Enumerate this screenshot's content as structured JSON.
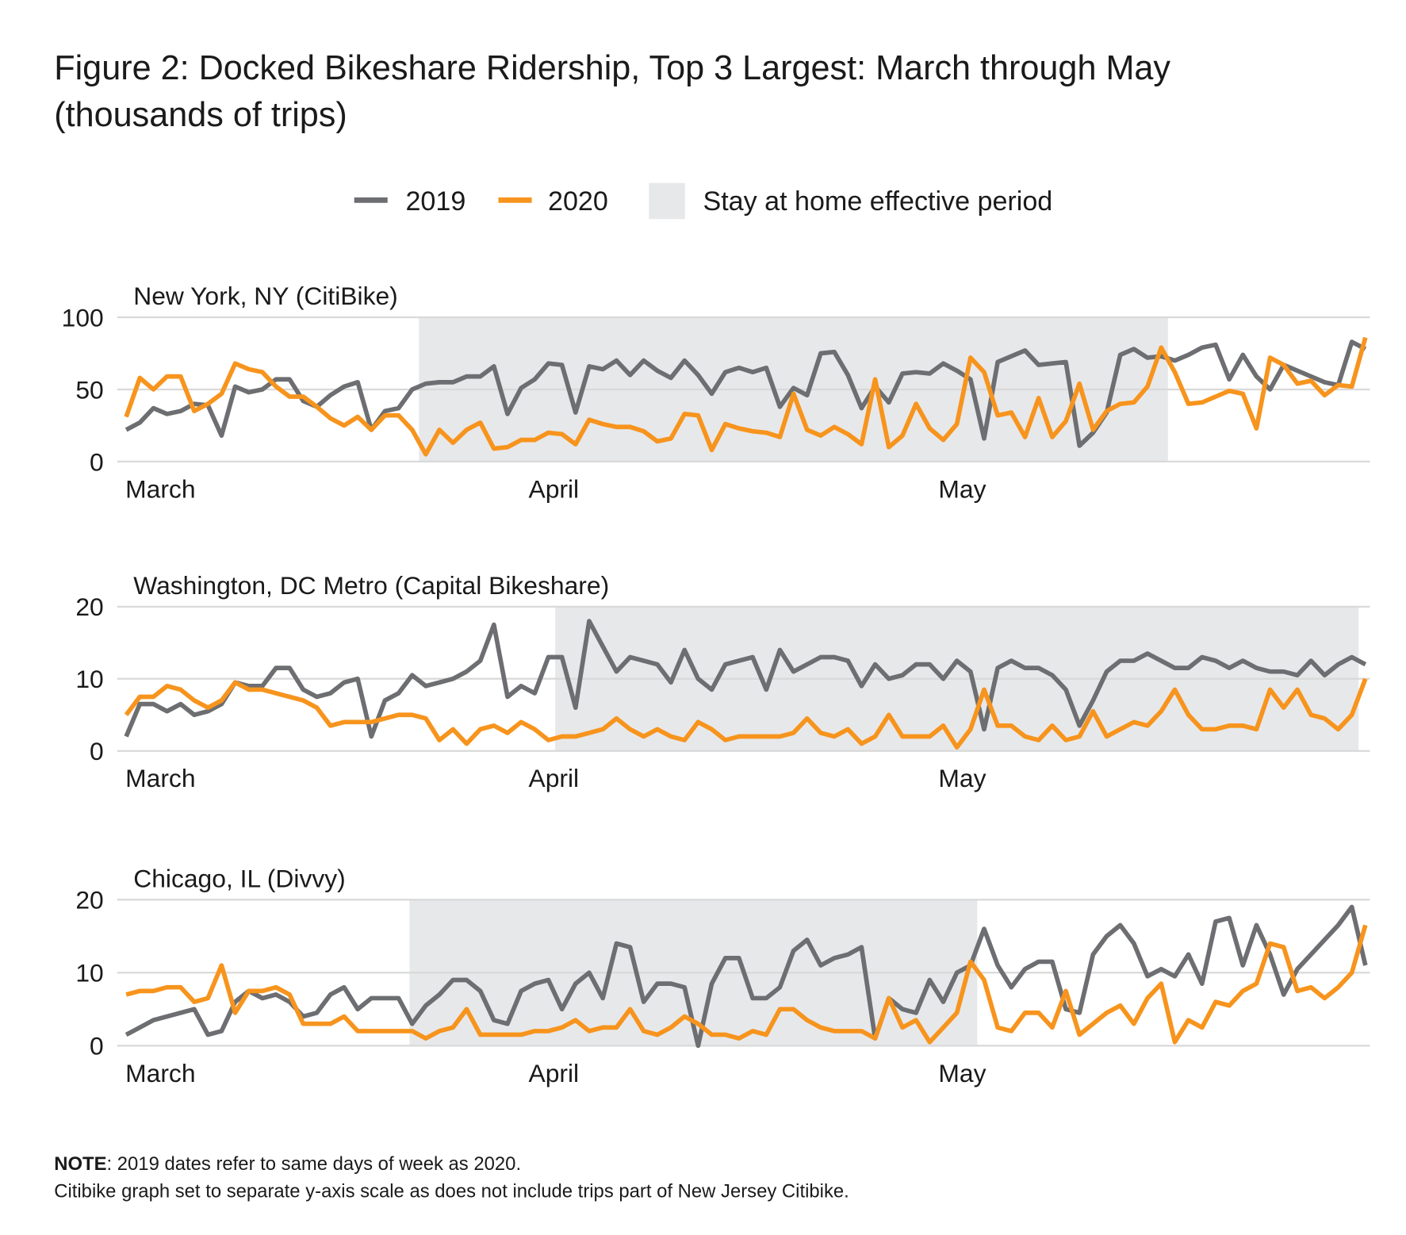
{
  "title": [
    "Figure 2: Docked Bikeshare Ridership, Top 3 Largest: March through May",
    "(thousands of trips)"
  ],
  "shade_label": "Stay at home effective period",
  "note_label": "NOTE",
  "notes": [
    ": 2019 dates refer to same days of week as 2020.",
    "Citibike graph set to separate y-axis scale as does not include trips part of New Jersey Citibike."
  ],
  "chart_data": [
    {
      "type": "line",
      "title": "New York, NY (CitiBike)",
      "ylim": [
        0,
        100
      ],
      "yticks": [
        0,
        50,
        100
      ],
      "grid": true,
      "shaded": [
        21.5,
        76.5
      ],
      "shade_color": "#e7e8ea",
      "categories": [
        "March",
        null,
        null,
        null,
        null,
        null,
        null,
        null,
        null,
        null,
        null,
        null,
        null,
        null,
        null,
        null,
        null,
        null,
        null,
        null,
        null,
        null,
        null,
        null,
        null,
        null,
        null,
        null,
        null,
        null,
        null,
        "April",
        null,
        null,
        null,
        null,
        null,
        null,
        null,
        null,
        null,
        null,
        null,
        null,
        null,
        null,
        null,
        null,
        null,
        null,
        null,
        null,
        null,
        null,
        null,
        null,
        null,
        null,
        null,
        null,
        null,
        "May",
        null,
        null,
        null,
        null,
        null,
        null,
        null,
        null,
        null,
        null,
        null,
        null,
        null,
        null,
        null,
        null,
        null,
        null,
        null,
        null,
        null,
        null,
        null,
        null,
        null,
        null,
        null,
        null,
        null,
        null
      ],
      "series": [
        {
          "name": "2019",
          "color": "#6d6e71",
          "values": [
            22,
            27,
            37,
            33,
            35,
            40,
            39,
            18,
            52,
            48,
            50,
            57,
            57,
            42,
            38,
            46,
            52,
            55,
            22,
            35,
            37,
            50,
            54,
            55,
            55,
            59,
            59,
            66,
            33,
            51,
            57,
            68,
            67,
            34,
            66,
            64,
            70,
            60,
            70,
            63,
            58,
            70,
            60,
            47,
            62,
            65,
            62,
            65,
            38,
            51,
            46,
            75,
            76,
            60,
            37,
            52,
            41,
            61,
            62,
            61,
            68,
            63,
            57,
            16,
            69,
            73,
            77,
            67,
            68,
            69,
            11,
            20,
            34,
            74,
            78,
            72,
            73,
            70,
            74,
            79,
            81,
            57,
            74,
            59,
            50,
            67,
            63,
            59,
            55,
            53,
            83,
            78
          ]
        },
        {
          "name": "2020",
          "color": "#f7941d",
          "values": [
            31,
            58,
            50,
            59,
            59,
            35,
            40,
            47,
            68,
            64,
            62,
            52,
            45,
            45,
            38,
            30,
            25,
            31,
            22,
            32,
            32,
            22,
            5,
            22,
            13,
            22,
            27,
            9,
            10,
            15,
            15,
            20,
            19,
            12,
            29,
            26,
            24,
            24,
            21,
            14,
            16,
            33,
            32,
            8,
            26,
            23,
            21,
            20,
            17,
            47,
            22,
            18,
            24,
            19,
            12,
            57,
            10,
            18,
            40,
            23,
            15,
            26,
            72,
            62,
            32,
            34,
            17,
            44,
            17,
            28,
            54,
            22,
            35,
            40,
            41,
            52,
            79,
            62,
            40,
            41,
            45,
            49,
            47,
            23,
            72,
            67,
            54,
            56,
            46,
            53,
            52,
            86
          ]
        }
      ]
    },
    {
      "type": "line",
      "title": "Washington, DC Metro (Capital Bikeshare)",
      "ylim": [
        0,
        20
      ],
      "yticks": [
        0,
        10,
        20
      ],
      "grid": true,
      "shaded": [
        31.5,
        90.5
      ],
      "shade_color": "#e7e8ea",
      "categories": [
        "March",
        null,
        null,
        null,
        null,
        null,
        null,
        null,
        null,
        null,
        null,
        null,
        null,
        null,
        null,
        null,
        null,
        null,
        null,
        null,
        null,
        null,
        null,
        null,
        null,
        null,
        null,
        null,
        null,
        null,
        null,
        "April",
        null,
        null,
        null,
        null,
        null,
        null,
        null,
        null,
        null,
        null,
        null,
        null,
        null,
        null,
        null,
        null,
        null,
        null,
        null,
        null,
        null,
        null,
        null,
        null,
        null,
        null,
        null,
        null,
        null,
        "May",
        null,
        null,
        null,
        null,
        null,
        null,
        null,
        null,
        null,
        null,
        null,
        null,
        null,
        null,
        null,
        null,
        null,
        null,
        null,
        null,
        null,
        null,
        null,
        null,
        null,
        null,
        null,
        null,
        null,
        null
      ],
      "series": [
        {
          "name": "2019",
          "color": "#6d6e71",
          "values": [
            2,
            6.5,
            6.5,
            5.5,
            6.5,
            5,
            5.5,
            6.5,
            9.5,
            9,
            9,
            11.5,
            11.5,
            8.5,
            7.5,
            8,
            9.5,
            10,
            2,
            7,
            8,
            10.5,
            9,
            9.5,
            10,
            11,
            12.5,
            17.5,
            7.5,
            9,
            8,
            13,
            13,
            6,
            18,
            14.5,
            11,
            13,
            12.5,
            12,
            9.5,
            14,
            10,
            8.5,
            12,
            12.5,
            13,
            8.5,
            14,
            11,
            12,
            13,
            13,
            12.5,
            9,
            12,
            10,
            10.5,
            12,
            12,
            10,
            12.5,
            11,
            3,
            11.5,
            12.5,
            11.5,
            11.5,
            10.5,
            8.5,
            3.5,
            7,
            11,
            12.5,
            12.5,
            13.5,
            12.5,
            11.5,
            11.5,
            13,
            12.5,
            11.5,
            12.5,
            11.5,
            11,
            11,
            10.5,
            12.5,
            10.5,
            12,
            13,
            12
          ]
        },
        {
          "name": "2020",
          "color": "#f7941d",
          "values": [
            5,
            7.5,
            7.5,
            9,
            8.5,
            7,
            6,
            7,
            9.5,
            8.5,
            8.5,
            8,
            7.5,
            7,
            6,
            3.5,
            4,
            4,
            4,
            4.5,
            5,
            5,
            4.5,
            1.5,
            3,
            1,
            3,
            3.5,
            2.5,
            4,
            3,
            1.5,
            2,
            2,
            2.5,
            3,
            4.5,
            3,
            2,
            3,
            2,
            1.5,
            4,
            3,
            1.5,
            2,
            2,
            2,
            2,
            2.5,
            4.5,
            2.5,
            2,
            3,
            1,
            2,
            5,
            2,
            2,
            2,
            3.5,
            0.5,
            3,
            8.5,
            3.5,
            3.5,
            2,
            1.5,
            3.5,
            1.5,
            2,
            5.5,
            2,
            3,
            4,
            3.5,
            5.5,
            8.5,
            5,
            3,
            3,
            3.5,
            3.5,
            3,
            8.5,
            6,
            8.5,
            5,
            4.5,
            3,
            5,
            10
          ]
        }
      ]
    },
    {
      "type": "line",
      "title": "Chicago, IL (Divvy)",
      "ylim": [
        0,
        20
      ],
      "yticks": [
        0,
        10,
        20
      ],
      "grid": true,
      "shaded": [
        20.8,
        62.5
      ],
      "shade_color": "#e7e8ea",
      "categories": [
        "March",
        null,
        null,
        null,
        null,
        null,
        null,
        null,
        null,
        null,
        null,
        null,
        null,
        null,
        null,
        null,
        null,
        null,
        null,
        null,
        null,
        null,
        null,
        null,
        null,
        null,
        null,
        null,
        null,
        null,
        null,
        "April",
        null,
        null,
        null,
        null,
        null,
        null,
        null,
        null,
        null,
        null,
        null,
        null,
        null,
        null,
        null,
        null,
        null,
        null,
        null,
        null,
        null,
        null,
        null,
        null,
        null,
        null,
        null,
        null,
        null,
        "May",
        null,
        null,
        null,
        null,
        null,
        null,
        null,
        null,
        null,
        null,
        null,
        null,
        null,
        null,
        null,
        null,
        null,
        null,
        null,
        null,
        null,
        null,
        null,
        null,
        null,
        null,
        null,
        null,
        null,
        null
      ],
      "series": [
        {
          "name": "2019",
          "color": "#6d6e71",
          "values": [
            1.5,
            2.5,
            3.5,
            4,
            4.5,
            5,
            1.5,
            2,
            6,
            7.5,
            6.5,
            7,
            6,
            4,
            4.5,
            7,
            8,
            5,
            6.5,
            6.5,
            6.5,
            3,
            5.5,
            7,
            9,
            9,
            7.5,
            3.5,
            3,
            7.5,
            8.5,
            9,
            5,
            8.5,
            10,
            6.5,
            14,
            13.5,
            6,
            8.5,
            8.5,
            8,
            0,
            8.5,
            12,
            12,
            6.5,
            6.5,
            8,
            13,
            14.5,
            11,
            12,
            12.5,
            13.5,
            1,
            6.5,
            5,
            4.5,
            9,
            6,
            10,
            11,
            16,
            11,
            8,
            10.5,
            11.5,
            11.5,
            5,
            4.5,
            12.5,
            15,
            16.5,
            14,
            9.5,
            10.5,
            9.5,
            12.5,
            8.5,
            17,
            17.5,
            11,
            16.5,
            12.5,
            7,
            10.5,
            12.5,
            14.5,
            16.5,
            19,
            11
          ]
        },
        {
          "name": "2020",
          "color": "#f7941d",
          "values": [
            7,
            7.5,
            7.5,
            8,
            8,
            6,
            6.5,
            11,
            4.5,
            7.5,
            7.5,
            8,
            7,
            3,
            3,
            3,
            4,
            2,
            2,
            2,
            2,
            2,
            1,
            2,
            2.5,
            5,
            1.5,
            1.5,
            1.5,
            1.5,
            2,
            2,
            2.5,
            3.5,
            2,
            2.5,
            2.5,
            5,
            2,
            1.5,
            2.5,
            4,
            3,
            1.5,
            1.5,
            1,
            2,
            1.5,
            5,
            5,
            3.5,
            2.5,
            2,
            2,
            2,
            1,
            6.5,
            2.5,
            3.5,
            0.5,
            2.5,
            4.5,
            11.5,
            9,
            2.5,
            2,
            4.5,
            4.5,
            2.5,
            7.5,
            1.5,
            3,
            4.5,
            5.5,
            3,
            6.5,
            8.5,
            0.5,
            3.5,
            2.5,
            6,
            5.5,
            7.5,
            8.5,
            14,
            13.5,
            7.5,
            8,
            6.5,
            8,
            10,
            16.5
          ]
        }
      ]
    }
  ]
}
